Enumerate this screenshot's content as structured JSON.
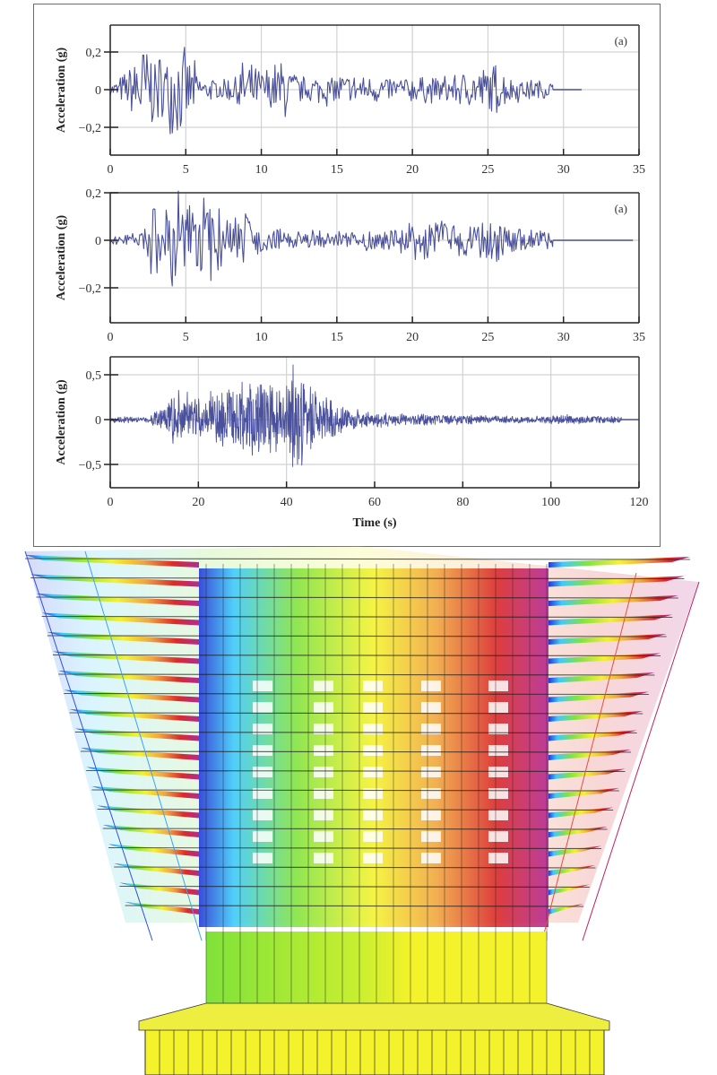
{
  "chart_data": [
    {
      "type": "line",
      "panel_label": "(a)",
      "xlabel": "",
      "ylabel": "Acceleration (g)",
      "xlim": [
        0,
        35
      ],
      "ylim": [
        -0.35,
        0.35
      ],
      "xticks": [
        0,
        5,
        10,
        15,
        20,
        25,
        30,
        35
      ],
      "xtick_labels": [
        "0",
        "5",
        "10",
        "15",
        "20",
        "25",
        "30",
        "35"
      ],
      "yticks": [
        0.2,
        0,
        -0.2
      ],
      "ytick_labels": [
        "0,2",
        "0",
        "−0,2"
      ],
      "grid": true,
      "color": "#4a519a",
      "record_end": 29.3,
      "tail_end": 31.2,
      "envelope": [
        {
          "t": 0,
          "a": 0.03
        },
        {
          "t": 1.2,
          "a": 0.12
        },
        {
          "t": 1.6,
          "a": 0.25
        },
        {
          "t": 2.3,
          "a": 0.31
        },
        {
          "t": 3.0,
          "a": 0.2
        },
        {
          "t": 4.5,
          "a": 0.27
        },
        {
          "t": 5.5,
          "a": 0.18
        },
        {
          "t": 6.0,
          "a": 0.06
        },
        {
          "t": 8.0,
          "a": 0.08
        },
        {
          "t": 8.7,
          "a": 0.17
        },
        {
          "t": 10.0,
          "a": 0.12
        },
        {
          "t": 11.5,
          "a": 0.2
        },
        {
          "t": 12.5,
          "a": 0.08
        },
        {
          "t": 15.0,
          "a": 0.1
        },
        {
          "t": 18.0,
          "a": 0.08
        },
        {
          "t": 22.0,
          "a": 0.08
        },
        {
          "t": 24.0,
          "a": 0.12
        },
        {
          "t": 25.5,
          "a": 0.16
        },
        {
          "t": 26.5,
          "a": 0.08
        },
        {
          "t": 29.3,
          "a": 0.05
        }
      ],
      "seed": 7
    },
    {
      "type": "line",
      "panel_label": "(a)",
      "xlabel": "",
      "ylabel": "Acceleration (g)",
      "xlim": [
        0,
        35
      ],
      "ylim": [
        -0.33,
        0.2
      ],
      "xticks": [
        0,
        5,
        10,
        15,
        20,
        25,
        30,
        35
      ],
      "xtick_labels": [
        "0",
        "5",
        "10",
        "15",
        "20",
        "25",
        "30",
        "35"
      ],
      "yticks": [
        0.2,
        0,
        -0.2
      ],
      "ytick_labels": [
        "0,2",
        "0",
        "−0,2"
      ],
      "grid": true,
      "color": "#4a519a",
      "record_end": 29.3,
      "tail_end": 34.6,
      "envelope": [
        {
          "t": 0,
          "a": 0.02
        },
        {
          "t": 2.0,
          "a": 0.04
        },
        {
          "t": 2.8,
          "a": 0.18
        },
        {
          "t": 3.5,
          "a": 0.17
        },
        {
          "t": 4.3,
          "a": 0.32
        },
        {
          "t": 5.5,
          "a": 0.14
        },
        {
          "t": 6.7,
          "a": 0.22
        },
        {
          "t": 8.0,
          "a": 0.11
        },
        {
          "t": 8.8,
          "a": 0.15
        },
        {
          "t": 10.0,
          "a": 0.06
        },
        {
          "t": 15.0,
          "a": 0.04
        },
        {
          "t": 19.0,
          "a": 0.06
        },
        {
          "t": 20.0,
          "a": 0.09
        },
        {
          "t": 24.0,
          "a": 0.1
        },
        {
          "t": 25.5,
          "a": 0.13
        },
        {
          "t": 27.0,
          "a": 0.06
        },
        {
          "t": 29.3,
          "a": 0.05
        }
      ],
      "seed": 23
    },
    {
      "type": "line",
      "panel_label": "",
      "xlabel": "Time (s)",
      "ylabel": "Acceleration (g)",
      "xlim": [
        0,
        120
      ],
      "ylim": [
        -0.77,
        0.7
      ],
      "xticks": [
        0,
        20,
        40,
        60,
        80,
        100,
        120
      ],
      "xtick_labels": [
        "0",
        "20",
        "40",
        "60",
        "80",
        "100",
        "120"
      ],
      "yticks": [
        0.5,
        0,
        -0.5
      ],
      "ytick_labels": [
        "0,5",
        "0",
        "−0,5"
      ],
      "grid": true,
      "color": "#4a519a",
      "record_end": 116,
      "tail_end": 120,
      "envelope": [
        {
          "t": 0,
          "a": 0.05
        },
        {
          "t": 8,
          "a": 0.03
        },
        {
          "t": 12,
          "a": 0.15
        },
        {
          "t": 15,
          "a": 0.38
        },
        {
          "t": 20,
          "a": 0.3
        },
        {
          "t": 25,
          "a": 0.35
        },
        {
          "t": 30,
          "a": 0.45
        },
        {
          "t": 34,
          "a": 0.5
        },
        {
          "t": 40,
          "a": 0.45
        },
        {
          "t": 41,
          "a": 0.65
        },
        {
          "t": 43,
          "a": 0.6
        },
        {
          "t": 48,
          "a": 0.3
        },
        {
          "t": 55,
          "a": 0.12
        },
        {
          "t": 65,
          "a": 0.08
        },
        {
          "t": 80,
          "a": 0.06
        },
        {
          "t": 95,
          "a": 0.04
        },
        {
          "t": 104,
          "a": 0.06
        },
        {
          "t": 116,
          "a": 0.04
        }
      ],
      "seed": 51
    }
  ],
  "figure": {
    "legend_color_scale": [
      "#1a2fd6",
      "#35c8ff",
      "#7fe23a",
      "#f4f22a",
      "#f0a23a",
      "#d82020",
      "#b02090"
    ]
  }
}
